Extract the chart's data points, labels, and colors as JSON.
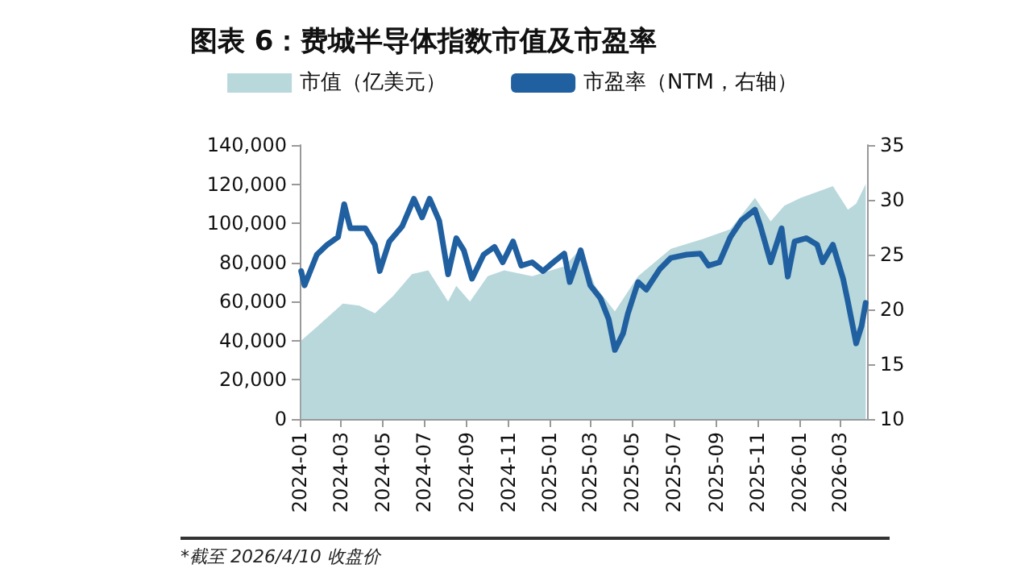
{
  "chart_data": {
    "type": "area",
    "title": "图表 6：费城半导体指数市值及市盈率",
    "annotations": [
      "*截至 2026/4/10 收盘价"
    ],
    "xlim": [
      "2024-01-01",
      "2026-04-10"
    ],
    "xticks": [
      {
        "value": "2024-01-01",
        "label": "2024-01"
      },
      {
        "value": "2024-03-01",
        "label": "2024-03"
      },
      {
        "value": "2024-05-01",
        "label": "2024-05"
      },
      {
        "value": "2024-07-01",
        "label": "2024-07"
      },
      {
        "value": "2024-09-01",
        "label": "2024-09"
      },
      {
        "value": "2024-11-01",
        "label": "2024-11"
      },
      {
        "value": "2025-01-01",
        "label": "2025-01"
      },
      {
        "value": "2025-03-01",
        "label": "2025-03"
      },
      {
        "value": "2025-05-01",
        "label": "2025-05"
      },
      {
        "value": "2025-07-01",
        "label": "2025-07"
      },
      {
        "value": "2025-09-01",
        "label": "2025-09"
      },
      {
        "value": "2025-11-01",
        "label": "2025-11"
      },
      {
        "value": "2026-01-01",
        "label": "2026-01"
      },
      {
        "value": "2026-03-01",
        "label": "2026-03"
      }
    ],
    "ylim": [
      0,
      140000
    ],
    "yticks": [
      0,
      {
        "value": 20000,
        "label": "20,000"
      },
      {
        "value": 40000,
        "label": "40,000"
      },
      {
        "value": 60000,
        "label": "60,000"
      },
      {
        "value": 80000,
        "label": "80,000"
      },
      {
        "value": 100000,
        "label": "100,000"
      },
      {
        "value": 120000,
        "label": "120,000"
      },
      {
        "value": 140000,
        "label": "140,000"
      }
    ],
    "y2lim": [
      10,
      35
    ],
    "y2ticks": [
      10,
      15,
      20,
      25,
      30,
      35
    ],
    "grid": false,
    "legend": "top",
    "marker": "none",
    "line_style": "solid",
    "series": [
      {
        "name": "市值（亿美元）",
        "color": "#b8d8dc",
        "x": [
          "2024-01-03",
          "2024-01-26",
          "2024-03-04",
          "2024-03-28",
          "2024-04-20",
          "2024-05-17",
          "2024-06-13",
          "2024-07-07",
          "2024-08-05",
          "2024-08-17",
          "2024-09-06",
          "2024-10-02",
          "2024-10-26",
          "2024-12-06",
          "2025-01-22",
          "2025-02-15",
          "2025-03-08",
          "2025-04-06",
          "2025-05-10",
          "2025-06-27",
          "2025-08-13",
          "2025-09-22",
          "2025-10-28",
          "2025-11-20",
          "2025-12-10",
          "2026-01-03",
          "2026-02-19",
          "2026-03-13",
          "2026-03-25",
          "2026-04-08"
        ],
        "values": [
          40000,
          47000,
          59000,
          58000,
          54000,
          63000,
          74000,
          76000,
          60000,
          68000,
          60000,
          73000,
          76000,
          73000,
          78000,
          87000,
          68000,
          55000,
          73000,
          87000,
          92000,
          97000,
          113000,
          101000,
          109000,
          113000,
          119000,
          107000,
          110000,
          120000
        ]
      },
      {
        "name": "市盈率（NTM，右轴）",
        "type": "line",
        "axis": "y2",
        "color": "#2060a0",
        "x": [
          "2024-01-03",
          "2024-01-08",
          "2024-01-26",
          "2024-02-10",
          "2024-02-26",
          "2024-03-06",
          "2024-03-15",
          "2024-04-06",
          "2024-04-20",
          "2024-04-27",
          "2024-05-11",
          "2024-05-30",
          "2024-06-16",
          "2024-06-28",
          "2024-07-09",
          "2024-07-23",
          "2024-08-05",
          "2024-08-17",
          "2024-08-28",
          "2024-09-09",
          "2024-09-26",
          "2024-10-12",
          "2024-10-24",
          "2024-11-08",
          "2024-11-20",
          "2024-12-06",
          "2024-12-22",
          "2025-01-06",
          "2025-01-22",
          "2025-01-30",
          "2025-02-15",
          "2025-03-01",
          "2025-03-16",
          "2025-03-28",
          "2025-04-06",
          "2025-04-18",
          "2025-04-25",
          "2025-05-10",
          "2025-05-22",
          "2025-06-11",
          "2025-06-27",
          "2025-07-20",
          "2025-08-09",
          "2025-08-21",
          "2025-09-06",
          "2025-09-22",
          "2025-10-08",
          "2025-10-28",
          "2025-11-05",
          "2025-11-20",
          "2025-12-06",
          "2025-12-15",
          "2025-12-25",
          "2026-01-11",
          "2026-01-27",
          "2026-02-04",
          "2026-02-19",
          "2026-03-06",
          "2026-03-13",
          "2026-03-25",
          "2026-04-02",
          "2026-04-08"
        ],
        "values": [
          23.5,
          22.2,
          25,
          25.9,
          26.6,
          29.6,
          27.4,
          27.4,
          25.9,
          23.5,
          26.2,
          27.6,
          30.1,
          28.4,
          30.1,
          28.1,
          23.2,
          26.5,
          25.4,
          22.8,
          25,
          25.7,
          24.3,
          26.2,
          24,
          24.3,
          23.5,
          24.3,
          25.1,
          22.5,
          25.4,
          22.2,
          21,
          19.1,
          16.3,
          17.8,
          19.6,
          22.5,
          21.8,
          23.7,
          24.7,
          25,
          25.1,
          24,
          24.3,
          26.6,
          28.1,
          29.1,
          27.6,
          24.3,
          27.4,
          23,
          26.2,
          26.5,
          25.9,
          24.3,
          25.9,
          22.8,
          20.7,
          16.9,
          18.5,
          20.6
        ]
      }
    ]
  }
}
